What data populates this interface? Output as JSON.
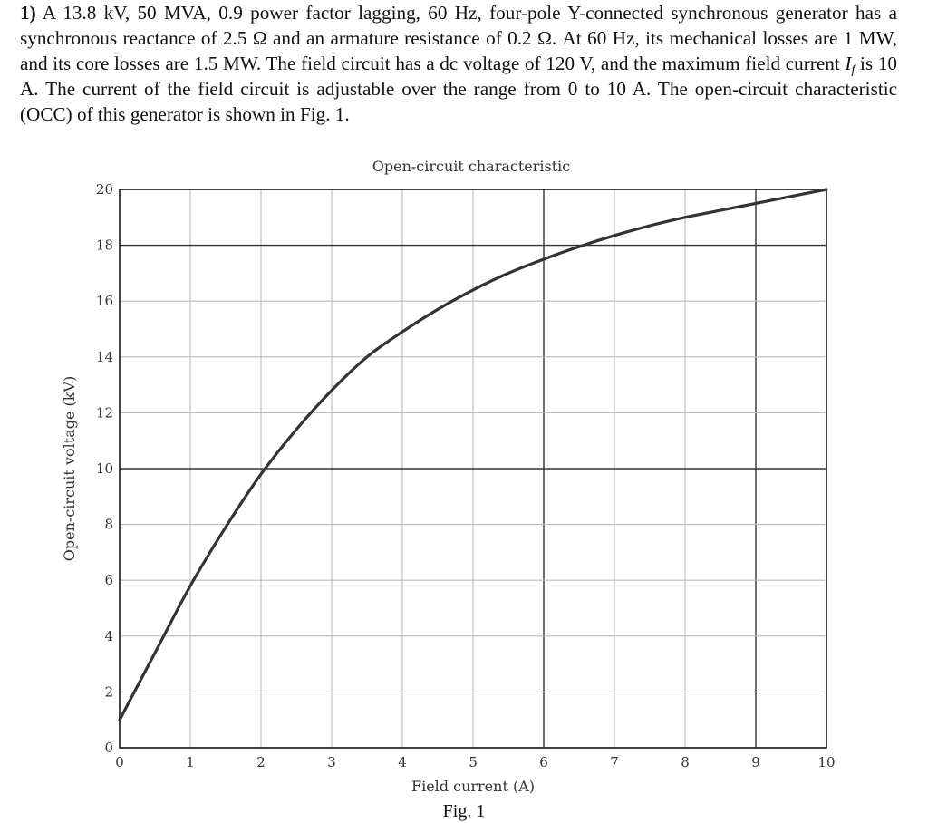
{
  "problem": {
    "number": "1)",
    "p1": " A 13.8 kV, 50 MVA, 0.9 power factor lagging, 60 Hz, four-pole Y-connected synchronous generator has a synchronous reactance of 2.5 Ω and an armature resistance of 0.2 Ω. At 60 Hz, its mechanical losses are 1 MW, and its core losses are 1.5 MW. The field circuit has a dc voltage of 120 V, and the maximum field current ",
    "var_main": "I",
    "var_sub": "f",
    "p2": " is 10 A. The current of the field circuit is adjustable over the range from 0 to 10 A. The open-circuit characteristic (OCC) of this generator is shown in Fig. 1."
  },
  "figure_caption": "Fig. 1",
  "chart_data": {
    "type": "line",
    "title": "Open-circuit characteristic",
    "xlabel": "Field current (A)",
    "ylabel": "Open-circuit voltage (kV)",
    "xlim": [
      0,
      10
    ],
    "ylim": [
      0,
      20
    ],
    "x_ticks": [
      "0",
      "1",
      "2",
      "3",
      "4",
      "5",
      "6",
      "7",
      "8",
      "9",
      "10"
    ],
    "y_ticks": [
      "0",
      "2",
      "4",
      "6",
      "8",
      "10",
      "12",
      "14",
      "16",
      "18",
      "20"
    ],
    "grid": true,
    "series": [
      {
        "x": [
          0,
          0.5,
          1,
          1.5,
          2,
          2.5,
          3,
          3.5,
          4,
          4.5,
          5,
          5.5,
          6,
          6.5,
          7,
          7.5,
          8,
          8.5,
          9,
          9.5,
          10
        ],
        "y": [
          1.0,
          3.4,
          5.8,
          7.9,
          9.8,
          11.4,
          12.8,
          14.0,
          14.9,
          15.7,
          16.4,
          17.0,
          17.5,
          17.95,
          18.35,
          18.7,
          19.0,
          19.25,
          19.5,
          19.75,
          20.0
        ]
      }
    ]
  }
}
